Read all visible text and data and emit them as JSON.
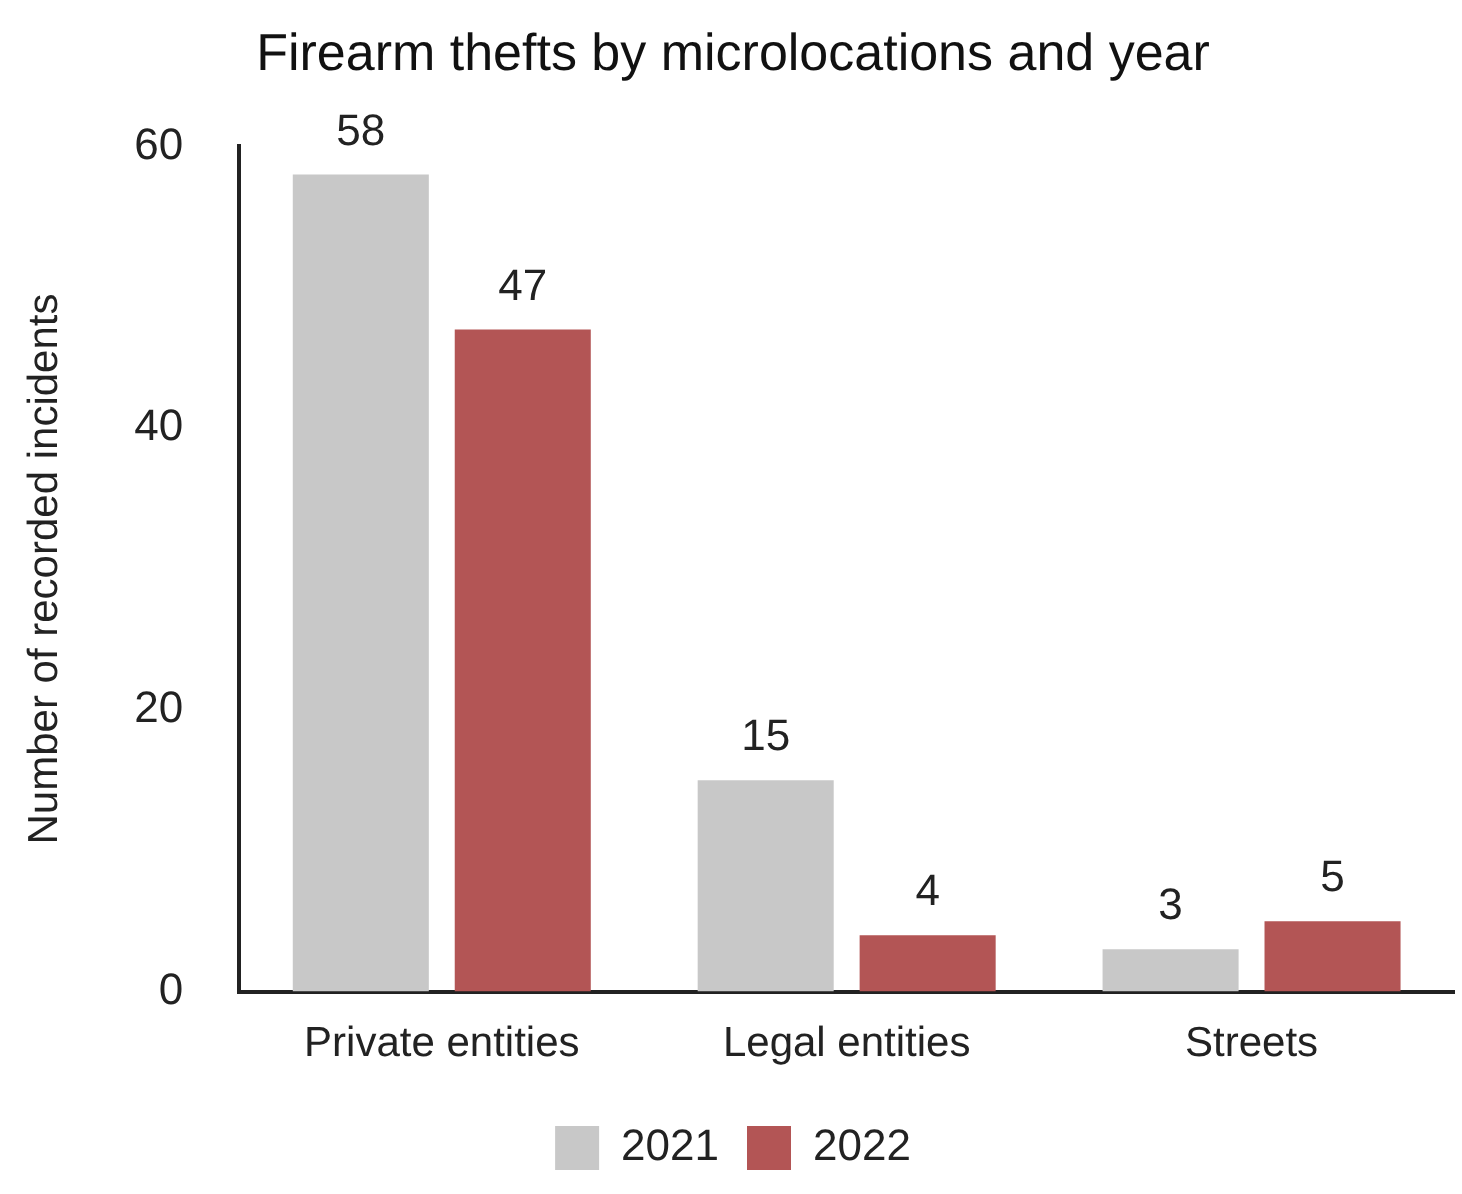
{
  "chart_data": {
    "type": "bar",
    "title": "Firearm thefts by microlocations and year",
    "ylabel": "Number of recorded incidents",
    "categories": [
      "Private entities",
      "Legal entities",
      "Streets"
    ],
    "series": [
      {
        "name": "2021",
        "color": "#c8c8c8",
        "values": [
          58,
          15,
          3
        ]
      },
      {
        "name": "2022",
        "color": "#b35555",
        "values": [
          47,
          4,
          5
        ]
      }
    ],
    "ylim": [
      0,
      60
    ],
    "yticks": [
      0,
      20,
      40,
      60
    ],
    "grid": false,
    "legend": "bottom",
    "data_labels": true
  }
}
